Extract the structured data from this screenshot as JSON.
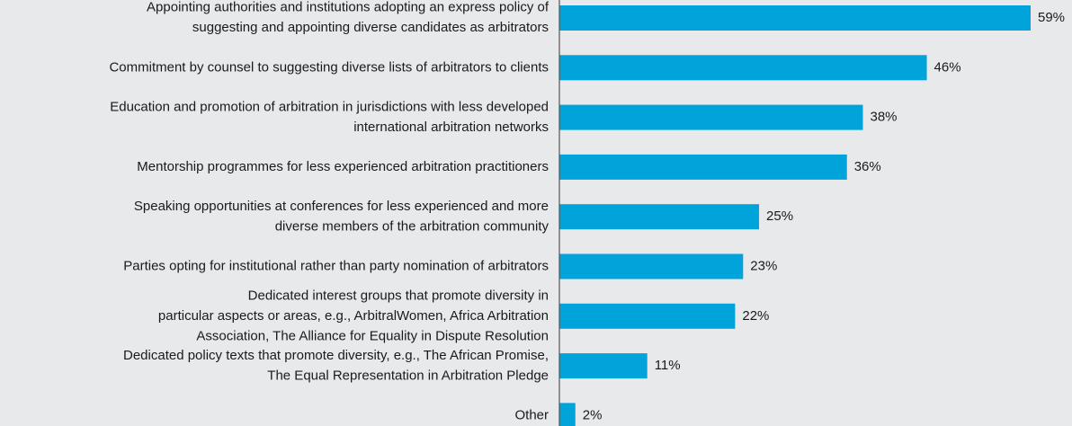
{
  "chart_data": {
    "type": "bar",
    "orientation": "horizontal",
    "color": "#00a3da",
    "categories": [
      [
        "Appointing authorities and institutions adopting an express policy of",
        "suggesting and appointing diverse candidates as arbitrators"
      ],
      [
        "Commitment by counsel to suggesting diverse lists of arbitrators to clients"
      ],
      [
        "Education and promotion of arbitration in jurisdictions with less developed",
        "international arbitration networks"
      ],
      [
        "Mentorship programmes for less experienced arbitration practitioners"
      ],
      [
        "Speaking opportunities at conferences for less experienced and more",
        "diverse members of the arbitration community"
      ],
      [
        "Parties opting for institutional rather than party nomination of arbitrators"
      ],
      [
        "Dedicated interest groups that promote diversity in",
        "particular aspects or areas, e.g., ArbitralWomen, Africa Arbitration",
        "Association, The Alliance for Equality in Dispute Resolution"
      ],
      [
        "Dedicated policy texts that promote diversity, e.g., The African Promise,",
        "The Equal Representation in Arbitration Pledge"
      ],
      [
        "Other"
      ]
    ],
    "values": [
      59,
      46,
      38,
      36,
      25,
      23,
      22,
      11,
      2
    ],
    "value_labels": [
      "59%",
      "46%",
      "38%",
      "36%",
      "25%",
      "23%",
      "22%",
      "11%",
      "2%"
    ]
  }
}
